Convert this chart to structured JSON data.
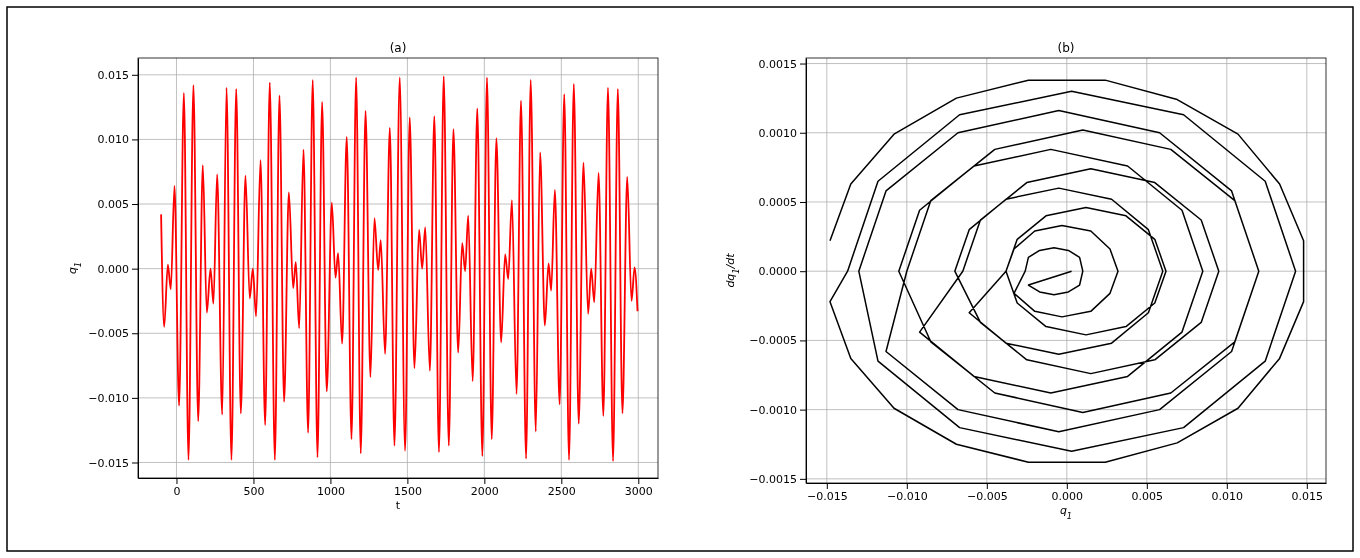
{
  "chart_data": [
    {
      "type": "line",
      "title": "(a)",
      "xlabel": "t",
      "ylabel": "q$_{1}$",
      "xlim": [
        -250,
        3128
      ],
      "ylim": [
        -0.0162,
        0.0163
      ],
      "xticks": [
        0,
        500,
        1000,
        1500,
        2000,
        2500,
        3000
      ],
      "yticks": [
        {
          "value": -0.015,
          "label": "−0.015"
        },
        {
          "value": -0.01,
          "label": "−0.010"
        },
        {
          "value": -0.005,
          "label": "−0.005"
        },
        {
          "value": 0,
          "label": "0.000"
        },
        {
          "value": 0.005,
          "label": "0.005"
        },
        {
          "value": 0.01,
          "label": "0.010"
        },
        {
          "value": 0.015,
          "label": "0.015"
        }
      ],
      "grid": true,
      "line_style": "solid",
      "series": [
        {
          "color": "#ff0000",
          "x": [
            -100,
            -80,
            -56,
            -37,
            -13,
            17,
            48,
            78,
            110,
            141,
            171,
            197,
            221,
            240,
            264,
            297,
            325,
            357,
            388,
            418,
            448,
            476,
            496,
            517,
            546,
            576,
            606,
            639,
            669,
            699,
            730,
            758,
            775,
            797,
            825,
            855,
            885,
            916,
            946,
            976,
            1009,
            1033,
            1050,
            1076,
            1106,
            1137,
            1167,
            1197,
            1228,
            1260,
            1286,
            1310,
            1327,
            1355,
            1386,
            1416,
            1450,
            1485,
            1515,
            1546,
            1576,
            1596,
            1616,
            1646,
            1675,
            1705,
            1736,
            1769,
            1799,
            1830,
            1856,
            1875,
            1895,
            1924,
            1954,
            1987,
            2017,
            2048,
            2078,
            2109,
            2135,
            2155,
            2179,
            2209,
            2238,
            2271,
            2301,
            2334,
            2362,
            2393,
            2417,
            2434,
            2458,
            2489,
            2519,
            2550,
            2581,
            2613,
            2644,
            2674,
            2694,
            2714,
            2742,
            2773,
            2803,
            2836,
            2867,
            2897,
            2928,
            2956,
            2976,
            2995
          ],
          "values": [
            0.0042,
            -0.0045,
            0.0003,
            -0.0016,
            0.0064,
            -0.0106,
            0.0136,
            -0.0148,
            0.0142,
            -0.0118,
            0.008,
            -0.0034,
            0,
            -0.0027,
            0.0073,
            -0.0113,
            0.014,
            -0.0148,
            0.0139,
            -0.0112,
            0.0072,
            -0.0023,
            0,
            -0.0037,
            0.0084,
            -0.0121,
            0.0144,
            -0.0148,
            0.0134,
            -0.0103,
            0.0059,
            -0.0015,
            0.0005,
            -0.0046,
            0.0092,
            -0.0127,
            0.0146,
            -0.0146,
            0.0129,
            -0.0095,
            0.0051,
            -0.0007,
            0.0012,
            -0.0058,
            0.0102,
            -0.0132,
            0.0148,
            -0.0143,
            0.0122,
            -0.0084,
            0.0039,
            -0.0001,
            0.0022,
            -0.0066,
            0.0109,
            -0.0137,
            0.0148,
            -0.0141,
            0.0117,
            -0.0077,
            0.003,
            0,
            0.0032,
            -0.0079,
            0.0118,
            -0.0142,
            0.0149,
            -0.0137,
            0.0108,
            -0.0065,
            0.002,
            -0.0002,
            0.0041,
            -0.0087,
            0.0124,
            -0.0145,
            0.0148,
            -0.0132,
            0.0101,
            -0.0057,
            0.0011,
            -0.0008,
            0.0053,
            -0.0097,
            0.013,
            -0.0147,
            0.0146,
            -0.0126,
            0.009,
            -0.0044,
            0.0004,
            -0.0017,
            0.0061,
            -0.0105,
            0.0135,
            -0.0148,
            0.0143,
            -0.012,
            0.0082,
            -0.0035,
            0,
            -0.0026,
            0.0074,
            -0.0114,
            0.014,
            -0.0149,
            0.0139,
            -0.0112,
            0.0071,
            -0.0025,
            0.0001,
            -0.0033
          ]
        }
      ]
    },
    {
      "type": "line",
      "title": "(b)",
      "xlabel": "q$_{1}$",
      "ylabel": "dq$_{1}$/dt",
      "xlim": [
        -0.0163,
        0.0162
      ],
      "ylim": [
        -0.00153,
        0.00154
      ],
      "xticks": [
        {
          "value": -0.015,
          "label": "−0.015"
        },
        {
          "value": -0.01,
          "label": "−0.010"
        },
        {
          "value": -0.005,
          "label": "−0.005"
        },
        {
          "value": 0,
          "label": "0.000"
        },
        {
          "value": 0.005,
          "label": "0.005"
        },
        {
          "value": 0.01,
          "label": "0.010"
        },
        {
          "value": 0.015,
          "label": "0.015"
        }
      ],
      "yticks": [
        {
          "value": -0.0015,
          "label": "−0.0015"
        },
        {
          "value": -0.001,
          "label": "−0.0010"
        },
        {
          "value": -0.0005,
          "label": "−0.0005"
        },
        {
          "value": 0,
          "label": "0.0000"
        },
        {
          "value": 0.0005,
          "label": "0.0005"
        },
        {
          "value": 0.001,
          "label": "0.0010"
        },
        {
          "value": 0.0015,
          "label": "0.0015"
        }
      ],
      "grid": true,
      "line_style": "solid",
      "series": [
        {
          "color": "#000000",
          "x": [
            -0.0148,
            -0.0135,
            -0.0108,
            -0.0069,
            -0.0024,
            0.0024,
            0.0069,
            0.0107,
            0.0133,
            0.0148,
            0.0148,
            0.0133,
            0.0107,
            0.0069,
            0.0024,
            -0.0024,
            -0.0069,
            -0.0108,
            -0.0135,
            -0.0148,
            -0.0137,
            -0.0118,
            -0.0067,
            0.0003,
            0.0073,
            0.0124,
            0.0143,
            0.0124,
            0.0073,
            0.0003,
            -0.0067,
            -0.0118,
            -0.013,
            -0.0113,
            -0.0068,
            -0.0005,
            0.0058,
            0.0103,
            0.012,
            0.0103,
            0.0058,
            -0.0005,
            -0.0068,
            -0.0113,
            -0.01,
            -0.0085,
            -0.0045,
            0.001,
            0.0065,
            0.0105,
            0.012,
            0.0105,
            0.0065,
            0.001,
            -0.0045,
            -0.0085,
            -0.0105,
            -0.0092,
            -0.0058,
            -0.001,
            0.0038,
            0.0072,
            0.0085,
            0.0072,
            0.0038,
            -0.001,
            -0.0058,
            -0.0092,
            -0.0065,
            -0.0054,
            -0.0025,
            0.0015,
            0.0055,
            0.0084,
            0.0095,
            0.0084,
            0.0055,
            0.0015,
            -0.0025,
            -0.0054,
            -0.007,
            -0.0061,
            -0.0038,
            -0.0005,
            0.0028,
            0.0051,
            0.006,
            0.0051,
            0.0028,
            -0.0005,
            -0.0038,
            -0.0061,
            -0.0038,
            -0.0031,
            -0.0013,
            0.0012,
            0.0037,
            0.0055,
            0.0062,
            0.0055,
            0.0037,
            0.0012,
            -0.0013,
            -0.0031,
            -0.0038,
            -0.0033,
            -0.002,
            -0.0003,
            0.0015,
            0.0027,
            0.0032,
            0.0027,
            0.0015,
            -0.0003,
            -0.002,
            -0.0033,
            -0.0026,
            -0.0024,
            -0.0017,
            -0.0008,
            0.0001,
            0.0008,
            0.001,
            0.0008,
            0.0001,
            -0.0008,
            -0.0017,
            -0.0024,
            0.0003
          ],
          "values": [
            0.00022,
            0.00063,
            0.00099,
            0.00125,
            0.00138,
            0.00138,
            0.00124,
            0.00099,
            0.00063,
            0.00022,
            -0.00022,
            -0.00063,
            -0.00099,
            -0.00124,
            -0.00138,
            -0.00138,
            -0.00125,
            -0.00099,
            -0.00063,
            -0.00022,
            0,
            0.00065,
            0.00113,
            0.0013,
            0.00113,
            0.00065,
            0,
            -0.00065,
            -0.00113,
            -0.0013,
            -0.00113,
            -0.00065,
            0,
            0.00058,
            0.001,
            0.00116,
            0.001,
            0.00058,
            0,
            -0.00058,
            -0.001,
            -0.00116,
            -0.001,
            -0.00058,
            0,
            0.00051,
            0.00088,
            0.00102,
            0.00088,
            0.00051,
            0,
            -0.00051,
            -0.00088,
            -0.00102,
            -0.00088,
            -0.00051,
            0,
            0.00044,
            0.00076,
            0.00088,
            0.00076,
            0.00044,
            0,
            -0.00044,
            -0.00076,
            -0.00088,
            -0.00076,
            -0.00044,
            0,
            0.00037,
            0.00064,
            0.00074,
            0.00064,
            0.00037,
            0,
            -0.00037,
            -0.00064,
            -0.00074,
            -0.00064,
            -0.00037,
            0,
            0.0003,
            0.00052,
            0.0006,
            0.00052,
            0.0003,
            0,
            -0.0003,
            -0.00052,
            -0.0006,
            -0.00052,
            -0.0003,
            0,
            0.00023,
            0.0004,
            0.00046,
            0.0004,
            0.00023,
            0,
            -0.00023,
            -0.0004,
            -0.00046,
            -0.0004,
            -0.00023,
            0,
            0.00016,
            0.00029,
            0.00033,
            0.00029,
            0.00016,
            0,
            -0.00016,
            -0.00029,
            -0.00033,
            -0.00029,
            -0.00016,
            0,
            0.0001,
            0.00015,
            0.00017,
            0.00015,
            0.0001,
            0,
            -0.0001,
            -0.00015,
            -0.00017,
            -0.00015,
            -0.0001,
            0
          ]
        }
      ]
    }
  ]
}
